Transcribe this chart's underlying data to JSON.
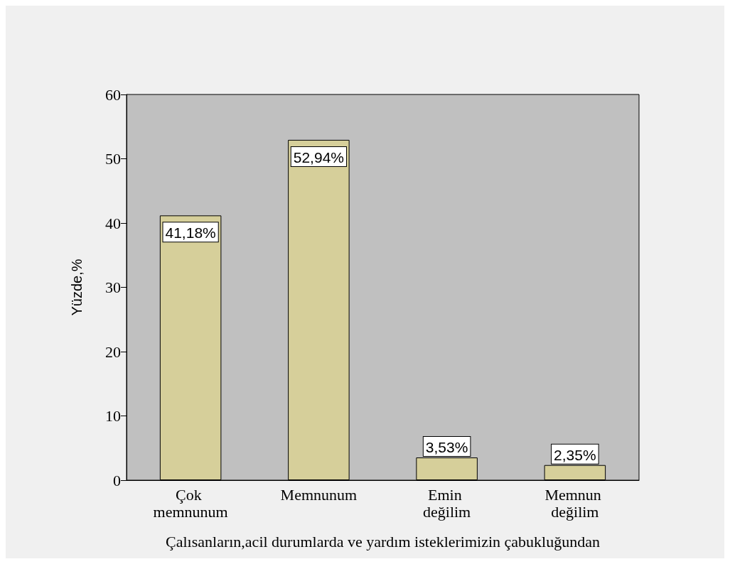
{
  "chart_data": {
    "type": "bar",
    "xlabel": "Çalısanların,acil durumlarda ve yardım isteklerimizin çabukluğundan",
    "ylabel": "Yüzde,%",
    "categories": [
      "Çok memnunum",
      "Memnunum",
      "Emin değilim",
      "Memnun değilim"
    ],
    "values": [
      41.18,
      52.94,
      3.53,
      2.35
    ],
    "value_labels": [
      "41,18%",
      "52,94%",
      "3,53%",
      "2,35%"
    ],
    "color": "#d6cf9a",
    "ylim": [
      0,
      60
    ],
    "yticks": [
      0,
      10,
      20,
      30,
      40,
      50,
      60
    ],
    "grid": false
  }
}
